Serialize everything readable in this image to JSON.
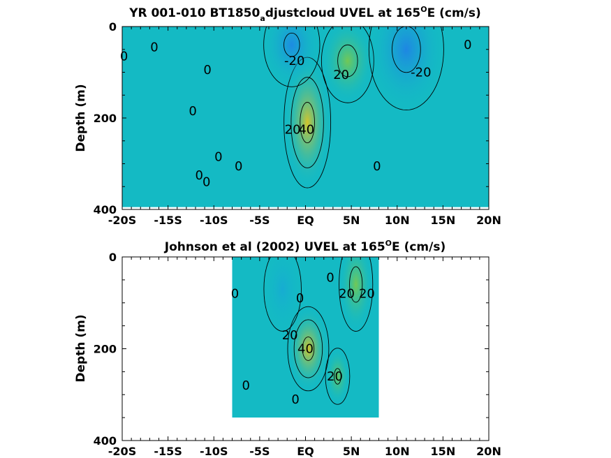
{
  "chart_data": [
    {
      "type": "heatmap",
      "title_main": "YR 001-010 BT1850",
      "title_sub": "a",
      "title_rest": "djustcloud UVEL at 165",
      "title_sup": "O",
      "title_end": "E (cm/s)",
      "ylabel": "Depth (m)",
      "xlim": [
        -20,
        20
      ],
      "ylim": [
        400,
        0
      ],
      "x_tick_values": [
        -20,
        -15,
        -10,
        -5,
        0,
        5,
        10,
        15,
        20
      ],
      "x_tick_labels": [
        "-20S",
        "-15S",
        "-10S",
        "-5S",
        "EQ",
        "5N",
        "10N",
        "15N",
        "20N"
      ],
      "y_tick_values": [
        0,
        200,
        400
      ],
      "y_tick_labels": [
        "0",
        "200",
        "400"
      ],
      "data_extent": {
        "lon": [
          -20,
          20
        ],
        "depth": [
          0,
          395
        ]
      },
      "contour_levels": [
        -20,
        0,
        20,
        40
      ],
      "features": [
        {
          "kind": "max",
          "lon": 0.2,
          "depth": 210,
          "value": 45,
          "rx": 2.5,
          "rz": 140
        },
        {
          "kind": "max",
          "lon": 4.6,
          "depth": 75,
          "value": 24,
          "rx": 2.8,
          "rz": 90
        },
        {
          "kind": "min",
          "lon": -1.5,
          "depth": 40,
          "value": -22,
          "rx": 3.0,
          "rz": 90
        },
        {
          "kind": "min",
          "lon": 11.0,
          "depth": 50,
          "value": -24,
          "rx": 4.0,
          "rz": 130
        }
      ],
      "contour_labels": [
        {
          "text": "0",
          "lon": -19.8,
          "depth": 65
        },
        {
          "text": "0",
          "lon": -16.5,
          "depth": 45
        },
        {
          "text": "0",
          "lon": -10.7,
          "depth": 95
        },
        {
          "text": "0",
          "lon": -12.3,
          "depth": 185
        },
        {
          "text": "0",
          "lon": -9.5,
          "depth": 285
        },
        {
          "text": "0",
          "lon": -7.3,
          "depth": 305
        },
        {
          "text": "0",
          "lon": -11.6,
          "depth": 325
        },
        {
          "text": "0",
          "lon": -10.8,
          "depth": 340
        },
        {
          "text": "-20",
          "lon": -1.2,
          "depth": 75
        },
        {
          "text": "20",
          "lon": 3.9,
          "depth": 105
        },
        {
          "text": "20",
          "lon": -1.4,
          "depth": 225
        },
        {
          "text": "40",
          "lon": 0.1,
          "depth": 225
        },
        {
          "text": "0",
          "lon": 7.8,
          "depth": 305
        },
        {
          "text": "-20",
          "lon": 12.6,
          "depth": 100
        },
        {
          "text": "0",
          "lon": 17.7,
          "depth": 40
        }
      ]
    },
    {
      "type": "heatmap",
      "title_main": "Johnson et al (2002) UVEL at 165",
      "title_sup": "O",
      "title_end": "E (cm/s)",
      "ylabel": "Depth (m)",
      "xlim": [
        -20,
        20
      ],
      "ylim": [
        400,
        0
      ],
      "x_tick_values": [
        -20,
        -15,
        -10,
        -5,
        0,
        5,
        10,
        15,
        20
      ],
      "x_tick_labels": [
        "-20S",
        "-15S",
        "-10S",
        "-5S",
        "EQ",
        "5N",
        "10N",
        "15N",
        "20N"
      ],
      "y_tick_values": [
        0,
        200,
        400
      ],
      "y_tick_labels": [
        "0",
        "200",
        "400"
      ],
      "data_extent": {
        "lon": [
          -8,
          8
        ],
        "depth": [
          0,
          350
        ]
      },
      "contour_levels": [
        0,
        20,
        40
      ],
      "features": [
        {
          "kind": "max",
          "lon": 0.3,
          "depth": 200,
          "value": 44,
          "rx": 2.2,
          "rz": 90
        },
        {
          "kind": "max",
          "lon": 5.5,
          "depth": 60,
          "value": 24,
          "rx": 1.8,
          "rz": 100
        },
        {
          "kind": "max",
          "lon": 3.5,
          "depth": 260,
          "value": 22,
          "rx": 1.3,
          "rz": 60
        },
        {
          "kind": "min",
          "lon": -2.5,
          "depth": 70,
          "value": -8,
          "rx": 2.0,
          "rz": 90
        }
      ],
      "contour_labels": [
        {
          "text": "0",
          "lon": -7.7,
          "depth": 80
        },
        {
          "text": "0",
          "lon": -0.6,
          "depth": 90
        },
        {
          "text": "0",
          "lon": 2.7,
          "depth": 45
        },
        {
          "text": "20",
          "lon": 4.5,
          "depth": 80
        },
        {
          "text": "20",
          "lon": 6.7,
          "depth": 80
        },
        {
          "text": "20",
          "lon": -1.7,
          "depth": 170
        },
        {
          "text": "40",
          "lon": 0.0,
          "depth": 200
        },
        {
          "text": "20",
          "lon": 3.2,
          "depth": 260
        },
        {
          "text": "0",
          "lon": -6.5,
          "depth": 280
        },
        {
          "text": "0",
          "lon": -1.1,
          "depth": 310
        }
      ]
    }
  ]
}
